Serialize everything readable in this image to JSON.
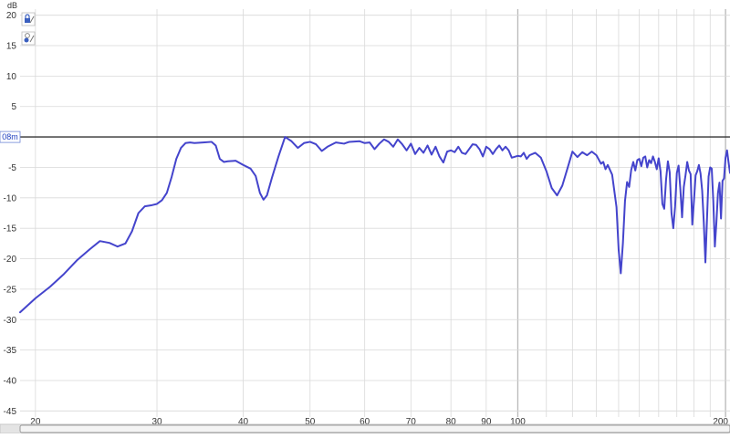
{
  "chart_data": {
    "type": "line",
    "title": "",
    "xlabel": "",
    "ylabel": "dB",
    "x_scale": "log",
    "xlim": [
      19,
      203
    ],
    "ylim": [
      -46,
      21
    ],
    "grid": true,
    "x_ticks": [
      20,
      30,
      40,
      50,
      60,
      70,
      80,
      90,
      100,
      200
    ],
    "x_tick_labels": [
      "20",
      "30",
      "40",
      "50",
      "60",
      "70",
      "80",
      "90",
      "100",
      "200"
    ],
    "y_ticks": [
      20,
      15,
      10,
      5,
      0,
      -5,
      -10,
      -15,
      -20,
      -25,
      -30,
      -35,
      -40,
      -45
    ],
    "y_tick_labels": [
      "20",
      "15",
      "10",
      "5",
      "",
      "-5",
      "-10",
      "-15",
      "-20",
      "-25",
      "-30",
      "-35",
      "-40",
      "-45"
    ],
    "reference_line": {
      "y": 0,
      "label": "08m"
    },
    "colors": {
      "line": "#4444cc",
      "reference": "#333333",
      "grid": "#d9d9d9",
      "major_grid": "#b8b8b8"
    },
    "icons": [
      "lock-icon",
      "pin-icon"
    ],
    "series": [
      {
        "values": [
          [
            19,
            -28.8
          ],
          [
            20,
            -26.5
          ],
          [
            21,
            -24.6
          ],
          [
            22,
            -22.5
          ],
          [
            23,
            -20.2
          ],
          [
            24,
            -18.4
          ],
          [
            24.8,
            -17.1
          ],
          [
            25.6,
            -17.4
          ],
          [
            26.3,
            -18.0
          ],
          [
            27,
            -17.5
          ],
          [
            27.6,
            -15.5
          ],
          [
            28.2,
            -12.5
          ],
          [
            28.8,
            -11.4
          ],
          [
            29.5,
            -11.2
          ],
          [
            30,
            -11.0
          ],
          [
            30.5,
            -10.4
          ],
          [
            31,
            -9.2
          ],
          [
            31.5,
            -6.6
          ],
          [
            32,
            -3.6
          ],
          [
            32.5,
            -1.8
          ],
          [
            33,
            -1.0
          ],
          [
            33.5,
            -0.9
          ],
          [
            34,
            -1.0
          ],
          [
            35,
            -0.9
          ],
          [
            36,
            -0.8
          ],
          [
            36.5,
            -1.4
          ],
          [
            37,
            -3.6
          ],
          [
            37.5,
            -4.1
          ],
          [
            38,
            -4.0
          ],
          [
            39,
            -3.9
          ],
          [
            40,
            -4.6
          ],
          [
            41,
            -5.2
          ],
          [
            41.7,
            -6.4
          ],
          [
            42.3,
            -9.2
          ],
          [
            42.8,
            -10.3
          ],
          [
            43.3,
            -9.6
          ],
          [
            44,
            -6.8
          ],
          [
            45,
            -3.2
          ],
          [
            46,
            0.0
          ],
          [
            47,
            -0.7
          ],
          [
            48,
            -1.8
          ],
          [
            49,
            -1.0
          ],
          [
            50,
            -0.8
          ],
          [
            51,
            -1.2
          ],
          [
            52,
            -2.3
          ],
          [
            53,
            -1.6
          ],
          [
            54.5,
            -0.9
          ],
          [
            56,
            -1.1
          ],
          [
            57,
            -0.8
          ],
          [
            59,
            -0.7
          ],
          [
            60,
            -1.0
          ],
          [
            61,
            -0.9
          ],
          [
            62,
            -2.0
          ],
          [
            63,
            -1.1
          ],
          [
            64,
            -0.4
          ],
          [
            65,
            -0.8
          ],
          [
            66,
            -1.6
          ],
          [
            67,
            -0.4
          ],
          [
            68,
            -1.2
          ],
          [
            69,
            -2.2
          ],
          [
            70,
            -1.1
          ],
          [
            71,
            -2.8
          ],
          [
            72,
            -1.8
          ],
          [
            73,
            -2.6
          ],
          [
            74,
            -1.4
          ],
          [
            75,
            -2.9
          ],
          [
            76,
            -1.6
          ],
          [
            77,
            -3.2
          ],
          [
            78,
            -4.2
          ],
          [
            79,
            -2.4
          ],
          [
            80,
            -2.2
          ],
          [
            81,
            -2.5
          ],
          [
            82,
            -1.6
          ],
          [
            83,
            -2.6
          ],
          [
            84,
            -2.8
          ],
          [
            85,
            -2.0
          ],
          [
            86,
            -1.2
          ],
          [
            87,
            -1.3
          ],
          [
            88,
            -2.0
          ],
          [
            89,
            -3.2
          ],
          [
            90,
            -1.6
          ],
          [
            91,
            -2.0
          ],
          [
            92,
            -2.8
          ],
          [
            93,
            -2.0
          ],
          [
            94,
            -1.4
          ],
          [
            95,
            -2.2
          ],
          [
            96,
            -1.6
          ],
          [
            97,
            -2.2
          ],
          [
            98,
            -3.4
          ],
          [
            100,
            -3.1
          ],
          [
            101,
            -3.2
          ],
          [
            102,
            -2.6
          ],
          [
            103,
            -3.6
          ],
          [
            104,
            -3.0
          ],
          [
            106,
            -2.6
          ],
          [
            108,
            -3.4
          ],
          [
            110,
            -5.6
          ],
          [
            112,
            -8.4
          ],
          [
            114,
            -9.6
          ],
          [
            116,
            -8.0
          ],
          [
            118,
            -5.2
          ],
          [
            120,
            -2.4
          ],
          [
            122,
            -3.3
          ],
          [
            124,
            -2.5
          ],
          [
            126,
            -3.0
          ],
          [
            128,
            -2.4
          ],
          [
            130,
            -3.0
          ],
          [
            132,
            -4.4
          ],
          [
            133,
            -4.1
          ],
          [
            134,
            -5.3
          ],
          [
            135,
            -4.6
          ],
          [
            137,
            -6.2
          ],
          [
            139,
            -11.5
          ],
          [
            140,
            -18.5
          ],
          [
            141,
            -22.4
          ],
          [
            142,
            -17.5
          ],
          [
            143,
            -10.5
          ],
          [
            144,
            -7.4
          ],
          [
            145,
            -8.2
          ],
          [
            146,
            -5.4
          ],
          [
            147,
            -4.1
          ],
          [
            148,
            -5.5
          ],
          [
            149,
            -3.8
          ],
          [
            150,
            -3.6
          ],
          [
            151,
            -4.8
          ],
          [
            152,
            -3.4
          ],
          [
            153,
            -3.2
          ],
          [
            154,
            -5.0
          ],
          [
            155,
            -3.8
          ],
          [
            156,
            -4.3
          ],
          [
            157,
            -3.2
          ],
          [
            158,
            -4.1
          ],
          [
            159,
            -5.3
          ],
          [
            160,
            -3.5
          ],
          [
            161,
            -5.6
          ],
          [
            162,
            -11.0
          ],
          [
            163,
            -11.8
          ],
          [
            164,
            -7.0
          ],
          [
            165,
            -4.0
          ],
          [
            166,
            -5.8
          ],
          [
            167,
            -12.5
          ],
          [
            168,
            -15.0
          ],
          [
            169,
            -11.5
          ],
          [
            170,
            -5.9
          ],
          [
            171,
            -4.7
          ],
          [
            172,
            -8.5
          ],
          [
            173,
            -13.2
          ],
          [
            174,
            -8.2
          ],
          [
            175,
            -6.3
          ],
          [
            176,
            -4.1
          ],
          [
            177,
            -5.5
          ],
          [
            178,
            -6.1
          ],
          [
            179,
            -14.4
          ],
          [
            180,
            -10.5
          ],
          [
            181,
            -6.3
          ],
          [
            182,
            -5.6
          ],
          [
            183,
            -4.6
          ],
          [
            184,
            -6.0
          ],
          [
            185,
            -8.8
          ],
          [
            186,
            -14.0
          ],
          [
            187,
            -20.6
          ],
          [
            188,
            -13.5
          ],
          [
            189,
            -6.5
          ],
          [
            190,
            -5.0
          ],
          [
            191,
            -5.2
          ],
          [
            192,
            -10.5
          ],
          [
            193,
            -18.0
          ],
          [
            194,
            -14.0
          ],
          [
            195,
            -9.2
          ],
          [
            196,
            -7.5
          ],
          [
            197,
            -13.4
          ],
          [
            198,
            -7.2
          ],
          [
            199,
            -6.8
          ],
          [
            200,
            -3.4
          ],
          [
            201,
            -2.2
          ],
          [
            202,
            -4.1
          ],
          [
            203,
            -5.9
          ]
        ]
      }
    ]
  }
}
